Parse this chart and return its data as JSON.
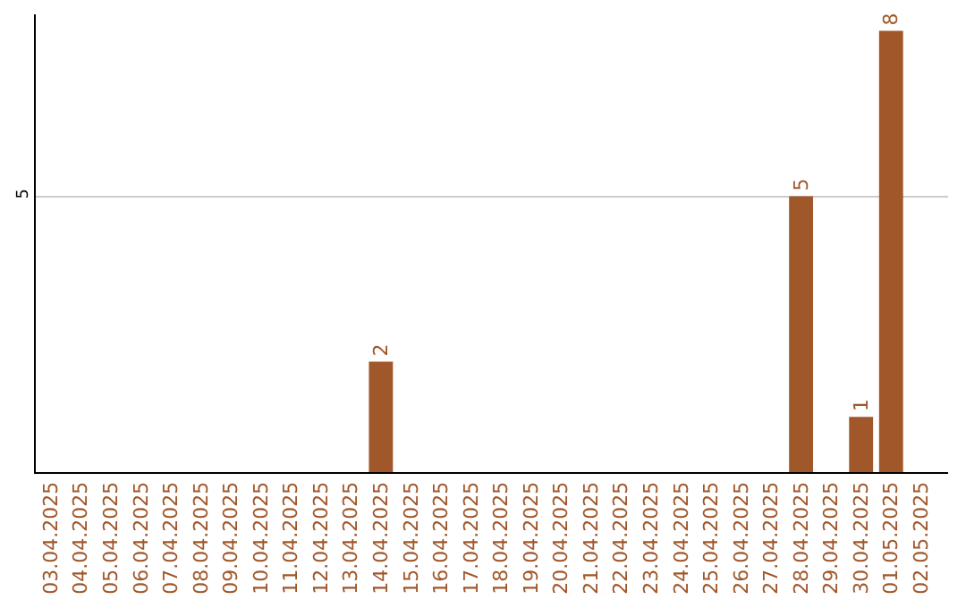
{
  "chart_data": {
    "type": "bar",
    "categories": [
      "03.04.2025",
      "04.04.2025",
      "05.04.2025",
      "06.04.2025",
      "07.04.2025",
      "08.04.2025",
      "09.04.2025",
      "10.04.2025",
      "11.04.2025",
      "12.04.2025",
      "13.04.2025",
      "14.04.2025",
      "15.04.2025",
      "16.04.2025",
      "17.04.2025",
      "18.04.2025",
      "19.04.2025",
      "20.04.2025",
      "21.04.2025",
      "22.04.2025",
      "23.04.2025",
      "24.04.2025",
      "25.04.2025",
      "26.04.2025",
      "27.04.2025",
      "28.04.2025",
      "29.04.2025",
      "30.04.2025",
      "01.05.2025",
      "02.05.2025"
    ],
    "values": [
      0,
      0,
      0,
      0,
      0,
      0,
      0,
      0,
      0,
      0,
      0,
      2,
      0,
      0,
      0,
      0,
      0,
      0,
      0,
      0,
      0,
      0,
      0,
      0,
      0,
      5,
      0,
      1,
      8,
      0
    ],
    "value_labels": [
      null,
      null,
      null,
      null,
      null,
      null,
      null,
      null,
      null,
      null,
      null,
      "2",
      null,
      null,
      null,
      null,
      null,
      null,
      null,
      null,
      null,
      null,
      null,
      null,
      null,
      "5",
      null,
      "1",
      "8",
      null
    ],
    "color": "#a0572a",
    "ylim": [
      0,
      8.3
    ],
    "yticks": [
      5
    ],
    "grid": "y",
    "legend": false
  }
}
